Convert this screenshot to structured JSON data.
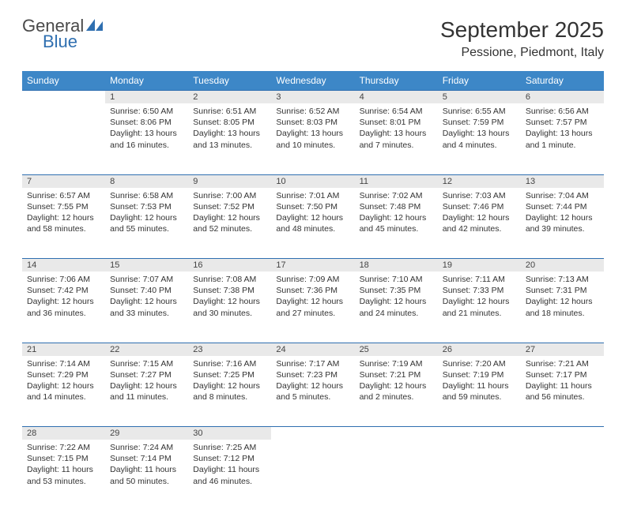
{
  "logo": {
    "word1": "General",
    "word2": "Blue"
  },
  "title": "September 2025",
  "location": "Pessione, Piedmont, Italy",
  "header_bg": "#3d87c7",
  "daynum_bg": "#e9e9e9",
  "rule_color": "#2f6fb0",
  "weekdays": [
    "Sunday",
    "Monday",
    "Tuesday",
    "Wednesday",
    "Thursday",
    "Friday",
    "Saturday"
  ],
  "weeks": [
    {
      "nums": [
        "",
        "1",
        "2",
        "3",
        "4",
        "5",
        "6"
      ],
      "cells": [
        null,
        {
          "sr": "6:50 AM",
          "ss": "8:06 PM",
          "dl": "13 hours and 16 minutes."
        },
        {
          "sr": "6:51 AM",
          "ss": "8:05 PM",
          "dl": "13 hours and 13 minutes."
        },
        {
          "sr": "6:52 AM",
          "ss": "8:03 PM",
          "dl": "13 hours and 10 minutes."
        },
        {
          "sr": "6:54 AM",
          "ss": "8:01 PM",
          "dl": "13 hours and 7 minutes."
        },
        {
          "sr": "6:55 AM",
          "ss": "7:59 PM",
          "dl": "13 hours and 4 minutes."
        },
        {
          "sr": "6:56 AM",
          "ss": "7:57 PM",
          "dl": "13 hours and 1 minute."
        }
      ]
    },
    {
      "nums": [
        "7",
        "8",
        "9",
        "10",
        "11",
        "12",
        "13"
      ],
      "cells": [
        {
          "sr": "6:57 AM",
          "ss": "7:55 PM",
          "dl": "12 hours and 58 minutes."
        },
        {
          "sr": "6:58 AM",
          "ss": "7:53 PM",
          "dl": "12 hours and 55 minutes."
        },
        {
          "sr": "7:00 AM",
          "ss": "7:52 PM",
          "dl": "12 hours and 52 minutes."
        },
        {
          "sr": "7:01 AM",
          "ss": "7:50 PM",
          "dl": "12 hours and 48 minutes."
        },
        {
          "sr": "7:02 AM",
          "ss": "7:48 PM",
          "dl": "12 hours and 45 minutes."
        },
        {
          "sr": "7:03 AM",
          "ss": "7:46 PM",
          "dl": "12 hours and 42 minutes."
        },
        {
          "sr": "7:04 AM",
          "ss": "7:44 PM",
          "dl": "12 hours and 39 minutes."
        }
      ]
    },
    {
      "nums": [
        "14",
        "15",
        "16",
        "17",
        "18",
        "19",
        "20"
      ],
      "cells": [
        {
          "sr": "7:06 AM",
          "ss": "7:42 PM",
          "dl": "12 hours and 36 minutes."
        },
        {
          "sr": "7:07 AM",
          "ss": "7:40 PM",
          "dl": "12 hours and 33 minutes."
        },
        {
          "sr": "7:08 AM",
          "ss": "7:38 PM",
          "dl": "12 hours and 30 minutes."
        },
        {
          "sr": "7:09 AM",
          "ss": "7:36 PM",
          "dl": "12 hours and 27 minutes."
        },
        {
          "sr": "7:10 AM",
          "ss": "7:35 PM",
          "dl": "12 hours and 24 minutes."
        },
        {
          "sr": "7:11 AM",
          "ss": "7:33 PM",
          "dl": "12 hours and 21 minutes."
        },
        {
          "sr": "7:13 AM",
          "ss": "7:31 PM",
          "dl": "12 hours and 18 minutes."
        }
      ]
    },
    {
      "nums": [
        "21",
        "22",
        "23",
        "24",
        "25",
        "26",
        "27"
      ],
      "cells": [
        {
          "sr": "7:14 AM",
          "ss": "7:29 PM",
          "dl": "12 hours and 14 minutes."
        },
        {
          "sr": "7:15 AM",
          "ss": "7:27 PM",
          "dl": "12 hours and 11 minutes."
        },
        {
          "sr": "7:16 AM",
          "ss": "7:25 PM",
          "dl": "12 hours and 8 minutes."
        },
        {
          "sr": "7:17 AM",
          "ss": "7:23 PM",
          "dl": "12 hours and 5 minutes."
        },
        {
          "sr": "7:19 AM",
          "ss": "7:21 PM",
          "dl": "12 hours and 2 minutes."
        },
        {
          "sr": "7:20 AM",
          "ss": "7:19 PM",
          "dl": "11 hours and 59 minutes."
        },
        {
          "sr": "7:21 AM",
          "ss": "7:17 PM",
          "dl": "11 hours and 56 minutes."
        }
      ]
    },
    {
      "nums": [
        "28",
        "29",
        "30",
        "",
        "",
        "",
        ""
      ],
      "cells": [
        {
          "sr": "7:22 AM",
          "ss": "7:15 PM",
          "dl": "11 hours and 53 minutes."
        },
        {
          "sr": "7:24 AM",
          "ss": "7:14 PM",
          "dl": "11 hours and 50 minutes."
        },
        {
          "sr": "7:25 AM",
          "ss": "7:12 PM",
          "dl": "11 hours and 46 minutes."
        },
        null,
        null,
        null,
        null
      ]
    }
  ],
  "labels": {
    "sunrise": "Sunrise:",
    "sunset": "Sunset:",
    "daylight": "Daylight:"
  }
}
